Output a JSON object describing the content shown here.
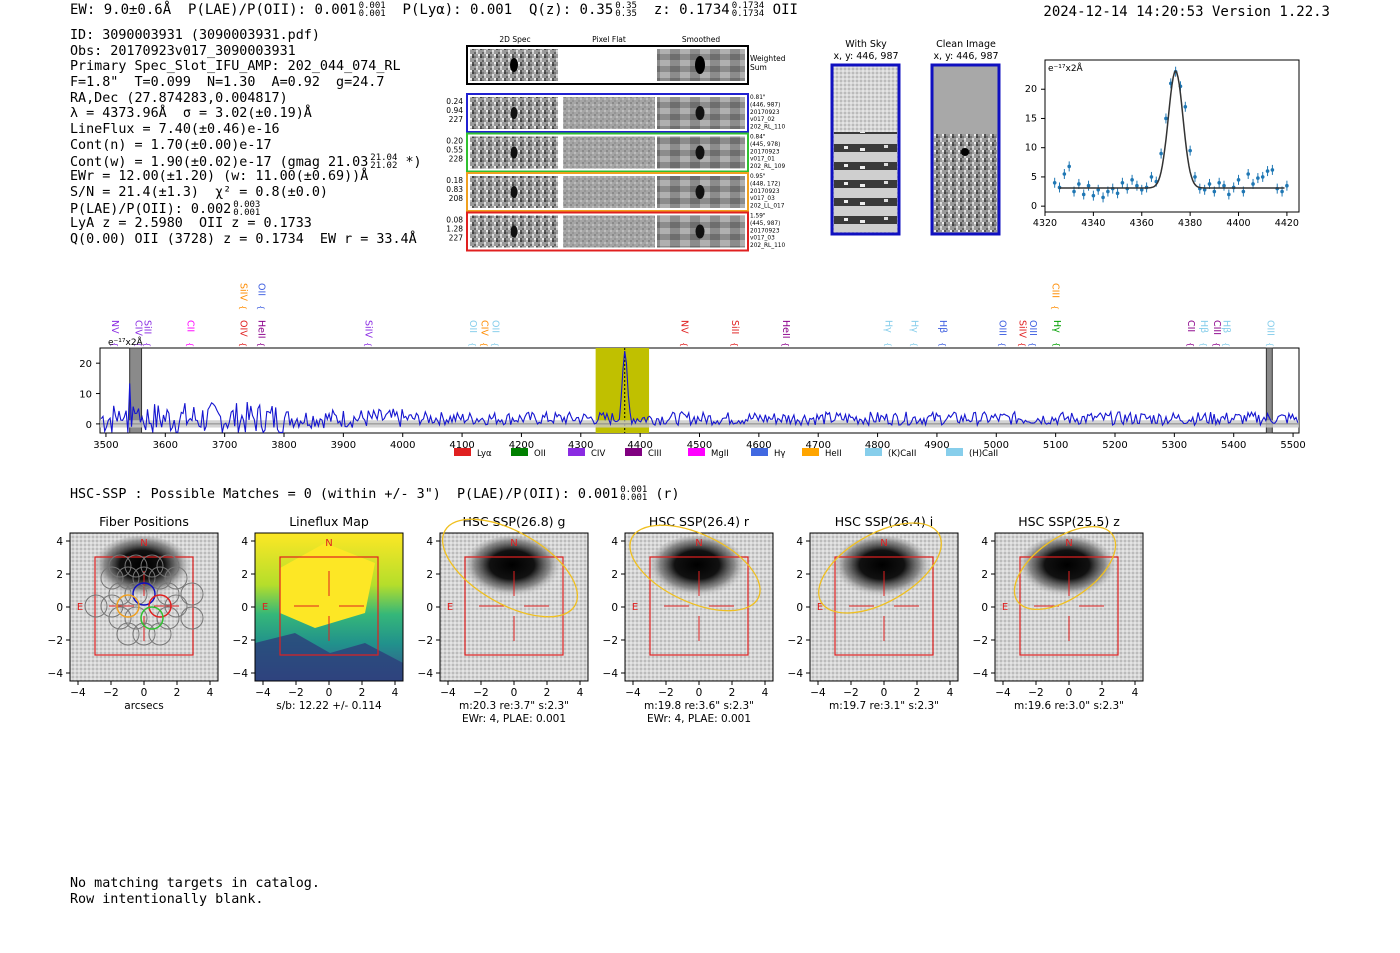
{
  "header": {
    "ew": "EW: 9.0±0.6Å",
    "plae_label": "P(LAE)/P(OII): 0.001",
    "plae_hi": "0.001",
    "plae_lo": "0.001",
    "plya": "P(Lyα): 0.001",
    "qz_label": "Q(z): 0.35",
    "qz_hi": "0.35",
    "qz_lo": "0.35",
    "z_label": "z: 0.1734",
    "z_hi": "0.1734",
    "z_lo": "0.1734",
    "z_line": "OII",
    "timestamp": "2024-12-14 14:20:53",
    "version": "Version 1.22.3"
  },
  "info": {
    "id": "ID: 3090003931 (3090003931.pdf)",
    "obs": "Obs: 20170923v017_3090003931",
    "primary": "Primary Spec_Slot_IFU_AMP: 202_044_074_RL",
    "fiber": "F=1.8\"  T=0.099  N=1.30  A=0.92  g=24.7",
    "radec": "RA,Dec (27.874283,0.004817)",
    "lambda": "λ = 4373.96Å  σ = 3.02(±0.19)Å",
    "lineflux": "LineFlux = 7.40(±0.46)e-16",
    "contn": "Cont(n) = 1.70(±0.00)e-17",
    "contw": "Cont(w) = 1.90(±0.02)e-17 (gmag 21.03",
    "contw_hi": "21.04",
    "contw_lo": "21.02",
    "contw_end": " *)",
    "ewr": "EWr = 12.00(±1.20) (w: 11.00(±0.69))Å",
    "sn": "S/N = 21.4(±1.3)  χ² = 0.8(±0.0)",
    "plae": "P(LAE)/P(OII): 0.002",
    "plae_hi": "0.003",
    "plae_lo": "0.001",
    "lya": "LyA z = 2.5980  OII z = 0.1733",
    "q": "Q(0.00) OII (3728) z = 0.1734  EW r = 33.4Å"
  },
  "cutouts": {
    "col_headers": [
      "2D Spec",
      "Pixel Flat",
      "Smoothed"
    ],
    "weighted_sum": [
      "Weighted",
      "Sum"
    ],
    "rows": [
      {
        "left": [
          "0.24",
          "0.94",
          "227"
        ],
        "right": [
          "0.81\"",
          "(446, 987)",
          "20170923",
          "v017_02",
          "202_RL_110"
        ],
        "color": "#2020d0"
      },
      {
        "left": [
          "0.20",
          "0.55",
          "228"
        ],
        "right": [
          "0.84\"",
          "(445, 978)",
          "20170923",
          "v017_01",
          "202_RL_109"
        ],
        "color": "#30c030"
      },
      {
        "left": [
          "0.18",
          "0.83",
          "208"
        ],
        "right": [
          "0.95\"",
          "(448, 172)",
          "20170923",
          "v017_03",
          "202_LL_017"
        ],
        "color": "#f0a020"
      },
      {
        "left": [
          "0.08",
          "1.28",
          "227"
        ],
        "right": [
          "1.59\"",
          "(445, 987)",
          "20170923",
          "v017_03",
          "202_RL_110"
        ],
        "color": "#e02020"
      }
    ]
  },
  "sky": {
    "with_sky_title": "With Sky",
    "with_sky_xy": "x, y: 446, 987",
    "clean_title": "Clean Image",
    "clean_xy": "x, y: 446, 987"
  },
  "line_fit_chart": {
    "type": "scatter",
    "unit_label": "e⁻¹⁷x2Å",
    "xlim": [
      4320,
      4425
    ],
    "ylim": [
      -1,
      25
    ],
    "xticks": [
      4320,
      4340,
      4360,
      4380,
      4400,
      4420
    ],
    "yticks": [
      0,
      5,
      10,
      15,
      20
    ],
    "x": [
      4324,
      4326,
      4328,
      4330,
      4332,
      4334,
      4336,
      4338,
      4340,
      4342,
      4344,
      4346,
      4348,
      4350,
      4352,
      4354,
      4356,
      4358,
      4360,
      4362,
      4364,
      4366,
      4368,
      4370,
      4372,
      4374,
      4376,
      4378,
      4380,
      4382,
      4384,
      4386,
      4388,
      4390,
      4392,
      4394,
      4396,
      4398,
      4400,
      4402,
      4404,
      4406,
      4408,
      4410,
      4412,
      4414,
      4416,
      4418,
      4420
    ],
    "y": [
      4.0,
      3.2,
      5.5,
      6.8,
      2.5,
      3.8,
      2.0,
      3.5,
      1.8,
      2.8,
      1.5,
      2.5,
      3.0,
      2.2,
      4.0,
      3.0,
      4.5,
      3.5,
      2.8,
      3.2,
      5.0,
      4.2,
      9.0,
      15.0,
      21.0,
      23.0,
      20.5,
      17.0,
      9.5,
      5.0,
      3.0,
      2.8,
      3.8,
      2.5,
      4.0,
      3.5,
      2.0,
      3.2,
      4.5,
      2.5,
      5.5,
      3.8,
      4.8,
      5.0,
      6.0,
      6.2,
      3.0,
      2.5,
      3.5
    ],
    "fit_line": "gaussian"
  },
  "spectrum_chart": {
    "type": "line",
    "unit_label": "e⁻¹⁷x2Å",
    "xlim": [
      3490,
      5510
    ],
    "ylim": [
      -3,
      25
    ],
    "xticks": [
      3500,
      3600,
      3700,
      3800,
      3900,
      4000,
      4100,
      4200,
      4300,
      4400,
      4500,
      4600,
      4700,
      4800,
      4900,
      5000,
      5100,
      5200,
      5300,
      5400,
      5500
    ],
    "yticks": [
      0,
      10,
      20
    ],
    "highlight_region": [
      4325,
      4415
    ],
    "peak_wavelength": 4374,
    "masked_regions": [
      [
        3540,
        3560
      ],
      [
        5455,
        5465
      ]
    ],
    "line_labels": [
      {
        "name": "NV",
        "x": 3505,
        "color": "#8a2be2",
        "row": 1
      },
      {
        "name": "CIV",
        "x": 3545,
        "color": "#8a2be2",
        "row": 1
      },
      {
        "name": "SiII",
        "x": 3560,
        "color": "#8a2be2",
        "row": 1
      },
      {
        "name": "CII",
        "x": 3632,
        "color": "#ff00ff",
        "row": 1
      },
      {
        "name": "SiIV",
        "x": 3722,
        "color": "#ff8c00",
        "row": 0
      },
      {
        "name": "OIV",
        "x": 3722,
        "color": "#e02020",
        "row": 1
      },
      {
        "name": "OII",
        "x": 3752,
        "color": "#4060e0",
        "row": 0
      },
      {
        "name": "HeII",
        "x": 3752,
        "color": "#8b008b",
        "row": 1
      },
      {
        "name": "SiIV",
        "x": 3932,
        "color": "#8a2be2",
        "row": 1
      },
      {
        "name": "OII",
        "x": 4108,
        "color": "#87ceeb",
        "row": 1
      },
      {
        "name": "CIV",
        "x": 4128,
        "color": "#ff8c00",
        "row": 1
      },
      {
        "name": "OII",
        "x": 4146,
        "color": "#87ceeb",
        "row": 1
      },
      {
        "name": "NV",
        "x": 4465,
        "color": "#e02020",
        "row": 1
      },
      {
        "name": "SiII",
        "x": 4550,
        "color": "#e02020",
        "row": 1
      },
      {
        "name": "HeII",
        "x": 4636,
        "color": "#8b008b",
        "row": 1
      },
      {
        "name": "Hγ",
        "x": 4808,
        "color": "#87ceeb",
        "row": 1
      },
      {
        "name": "Hγ",
        "x": 4852,
        "color": "#87ceeb",
        "row": 1
      },
      {
        "name": "Hβ",
        "x": 4900,
        "color": "#4060e0",
        "row": 1
      },
      {
        "name": "OIII",
        "x": 5000,
        "color": "#4060e0",
        "row": 1
      },
      {
        "name": "SiIV",
        "x": 5034,
        "color": "#e02020",
        "row": 1
      },
      {
        "name": "OIII",
        "x": 5052,
        "color": "#4060e0",
        "row": 1
      },
      {
        "name": "CIII",
        "x": 5090,
        "color": "#ff8c00",
        "row": 0
      },
      {
        "name": "Hγ",
        "x": 5092,
        "color": "#00a000",
        "row": 1
      },
      {
        "name": "CII",
        "x": 5318,
        "color": "#8b008b",
        "row": 1
      },
      {
        "name": "Hβ",
        "x": 5340,
        "color": "#87ceeb",
        "row": 1
      },
      {
        "name": "CIII",
        "x": 5362,
        "color": "#8b008b",
        "row": 1
      },
      {
        "name": "Hβ",
        "x": 5378,
        "color": "#87ceeb",
        "row": 1
      },
      {
        "name": "OIII",
        "x": 5452,
        "color": "#87ceeb",
        "row": 1
      }
    ],
    "legend": [
      {
        "name": "Lyα",
        "color": "#e02020"
      },
      {
        "name": "OII",
        "color": "#008000"
      },
      {
        "name": "CIV",
        "color": "#8a2be2"
      },
      {
        "name": "CIII",
        "color": "#800080"
      },
      {
        "name": "MgII",
        "color": "#ff00ff"
      },
      {
        "name": "Hγ",
        "color": "#4169e1"
      },
      {
        "name": "HeII",
        "color": "#ffa500"
      },
      {
        "name": "(K)CaII",
        "color": "#87ceeb"
      },
      {
        "name": "(H)CaII",
        "color": "#87ceeb"
      }
    ]
  },
  "hsc": {
    "line": "HSC-SSP : Possible Matches = 0 (within +/- 3\")  P(LAE)/P(OII): 0.001",
    "plae_hi": "0.001",
    "plae_lo": "0.001",
    "filter": "(r)",
    "panels": [
      {
        "title": "Fiber Positions",
        "xlabel": "arcsecs",
        "xlabel2": "",
        "kind": "fiber"
      },
      {
        "title": "Lineflux Map",
        "xlabel": "s/b: 12.22 +/- 0.114",
        "xlabel2": "",
        "kind": "lineflux"
      },
      {
        "title": "HSC SSP(26.8) g",
        "xlabel": "m:20.3  re:3.7\"  s:2.3\"",
        "xlabel2": "EWr: 4, PLAE: 0.001",
        "kind": "galaxy"
      },
      {
        "title": "HSC SSP(26.4) r",
        "xlabel": "m:19.8  re:3.6\"  s:2.3\"",
        "xlabel2": "EWr: 4, PLAE: 0.001",
        "kind": "galaxy"
      },
      {
        "title": "HSC SSP(26.4) i",
        "xlabel": "m:19.7  re:3.1\"  s:2.3\"",
        "xlabel2": "",
        "kind": "galaxy"
      },
      {
        "title": "HSC SSP(25.5) z",
        "xlabel": "m:19.6  re:3.0\"  s:2.3\"",
        "xlabel2": "",
        "kind": "galaxy"
      }
    ],
    "tick_labels": [
      "−4",
      "−2",
      "0",
      "2",
      "4"
    ],
    "compass_n": "N",
    "compass_e": "E"
  },
  "footer": {
    "line1": "No matching targets in catalog.",
    "line2": "Row intentionally blank."
  }
}
